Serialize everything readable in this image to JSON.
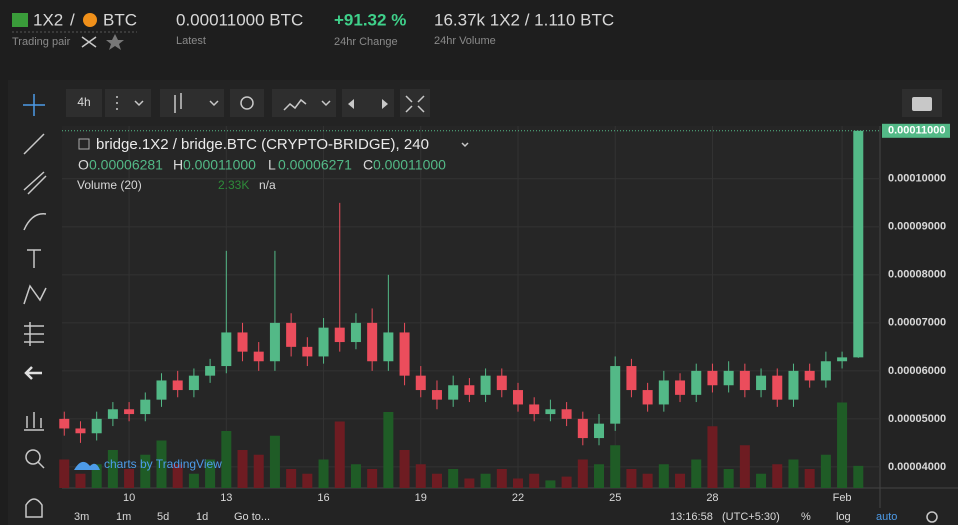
{
  "header": {
    "base": "1X2",
    "slash": "/",
    "quote": "BTC",
    "pair_caption": "Trading pair",
    "latest": "0.00011000 BTC",
    "latest_caption": "Latest",
    "change": "+91.32 %",
    "change_caption": "24hr Change",
    "volume": "16.37k 1X2 / 1.110 BTC",
    "volume_caption": "24hr Volume"
  },
  "toolbar": {
    "interval": "4h"
  },
  "chart_data": {
    "type": "candlestick",
    "title": "bridge.1X2 / bridge.BTC (CRYPTO-BRIDGE), 240",
    "legend": {
      "o_label": "O",
      "o": "0.00006281",
      "h_label": "H",
      "h": "0.00011000",
      "l_label": "L",
      "l": "0.00006271",
      "c_label": "C",
      "c": "0.00011000",
      "volume_title": "Volume (20)",
      "volume_value": "2.33K",
      "volume_ma": "n/a"
    },
    "up_color": "#53b987",
    "down_color": "#eb4d5c",
    "volume_up_color": "#1f5c26",
    "volume_down_color": "#6e1c22",
    "grid": true,
    "last_price": {
      "value": 0.00011,
      "label": "0.00011000"
    },
    "watermark": "charts by TradingView",
    "xlim": [
      7.93,
      33.17
    ],
    "xticks": [
      10,
      13,
      16,
      19,
      22,
      25,
      28,
      {
        "value": 32,
        "label": "Feb"
      }
    ],
    "ylim": [
      3.56e-05,
      0.000111
    ],
    "yticks": [
      {
        "value": 4e-05,
        "label": "0.00004000"
      },
      {
        "value": 5e-05,
        "label": "0.00005000"
      },
      {
        "value": 6e-05,
        "label": "0.00006000"
      },
      {
        "value": 7e-05,
        "label": "0.00007000"
      },
      {
        "value": 8e-05,
        "label": "0.00008000"
      },
      {
        "value": 9e-05,
        "label": "0.00009000"
      },
      {
        "value": 0.0001,
        "label": "0.00010000"
      }
    ],
    "volume_lim": [
      0,
      10000
    ],
    "x": [
      8,
      8.5,
      9,
      9.5,
      10,
      10.5,
      11,
      11.5,
      12,
      12.5,
      13,
      13.5,
      14,
      14.5,
      15,
      15.5,
      16,
      16.5,
      17,
      17.5,
      18,
      18.5,
      19,
      19.5,
      20,
      20.5,
      21,
      21.5,
      22,
      22.5,
      23,
      23.5,
      24,
      24.5,
      25,
      25.5,
      26,
      26.5,
      27,
      27.5,
      28,
      28.5,
      29,
      29.5,
      30,
      30.5,
      31,
      31.5,
      32,
      32.5
    ],
    "open": [
      5e-05,
      4.8e-05,
      4.7e-05,
      5e-05,
      5.2e-05,
      5.1e-05,
      5.4e-05,
      5.8e-05,
      5.6e-05,
      5.9e-05,
      6.1e-05,
      6.8e-05,
      6.4e-05,
      6.2e-05,
      7e-05,
      6.5e-05,
      6.3e-05,
      6.9e-05,
      6.6e-05,
      7e-05,
      6.2e-05,
      6.8e-05,
      5.9e-05,
      5.6e-05,
      5.4e-05,
      5.7e-05,
      5.5e-05,
      5.9e-05,
      5.6e-05,
      5.3e-05,
      5.1e-05,
      5.2e-05,
      5e-05,
      4.6e-05,
      4.9e-05,
      6.1e-05,
      5.6e-05,
      5.3e-05,
      5.8e-05,
      5.5e-05,
      6e-05,
      5.7e-05,
      6e-05,
      5.6e-05,
      5.9e-05,
      5.4e-05,
      6e-05,
      5.8e-05,
      6.2e-05,
      6.281e-05
    ],
    "high": [
      5.15e-05,
      4.95e-05,
      5.15e-05,
      5.35e-05,
      5.35e-05,
      5.55e-05,
      5.95e-05,
      6e-05,
      6.05e-05,
      6.25e-05,
      8.5e-05,
      7e-05,
      6.6e-05,
      8.5e-05,
      7.2e-05,
      6.7e-05,
      7.1e-05,
      9.5e-05,
      7.2e-05,
      7.3e-05,
      8e-05,
      7e-05,
      6.1e-05,
      5.8e-05,
      5.9e-05,
      5.85e-05,
      6.05e-05,
      6.05e-05,
      5.75e-05,
      5.45e-05,
      5.4e-05,
      5.35e-05,
      5.15e-05,
      5.1e-05,
      6.3e-05,
      6.25e-05,
      5.75e-05,
      6e-05,
      5.95e-05,
      6.15e-05,
      6.15e-05,
      6.2e-05,
      6.15e-05,
      6.05e-05,
      6.05e-05,
      6.15e-05,
      6.15e-05,
      6.4e-05,
      6.4e-05,
      0.00011
    ],
    "low": [
      4.65e-05,
      4.5e-05,
      4.55e-05,
      4.85e-05,
      4.95e-05,
      4.95e-05,
      5.25e-05,
      5.45e-05,
      5.45e-05,
      5.75e-05,
      5.95e-05,
      6.2e-05,
      6e-05,
      6e-05,
      6.3e-05,
      6.1e-05,
      6.15e-05,
      6.4e-05,
      6.45e-05,
      6e-05,
      6e-05,
      5.7e-05,
      5.45e-05,
      5.2e-05,
      5.25e-05,
      5.35e-05,
      5.35e-05,
      5.45e-05,
      5.15e-05,
      4.95e-05,
      4.95e-05,
      4.85e-05,
      4.45e-05,
      4.45e-05,
      4.75e-05,
      5.45e-05,
      5.15e-05,
      5.15e-05,
      5.35e-05,
      5.35e-05,
      5.55e-05,
      5.55e-05,
      5.45e-05,
      5.45e-05,
      5.25e-05,
      5.25e-05,
      5.65e-05,
      5.65e-05,
      6.05e-05,
      6.271e-05
    ],
    "close": [
      4.8e-05,
      4.7e-05,
      5e-05,
      5.2e-05,
      5.1e-05,
      5.4e-05,
      5.8e-05,
      5.6e-05,
      5.9e-05,
      6.1e-05,
      6.8e-05,
      6.4e-05,
      6.2e-05,
      7e-05,
      6.5e-05,
      6.3e-05,
      6.9e-05,
      6.6e-05,
      7e-05,
      6.2e-05,
      6.8e-05,
      5.9e-05,
      5.6e-05,
      5.4e-05,
      5.7e-05,
      5.5e-05,
      5.9e-05,
      5.6e-05,
      5.3e-05,
      5.1e-05,
      5.2e-05,
      5e-05,
      4.6e-05,
      4.9e-05,
      6.1e-05,
      5.6e-05,
      5.3e-05,
      5.8e-05,
      5.5e-05,
      6e-05,
      5.7e-05,
      6e-05,
      5.6e-05,
      5.9e-05,
      5.4e-05,
      6e-05,
      5.8e-05,
      6.2e-05,
      6.281e-05,
      0.00011
    ],
    "volume": [
      3000,
      1500,
      2500,
      4000,
      2000,
      3500,
      5000,
      2500,
      1500,
      3000,
      6000,
      4000,
      3500,
      5500,
      2000,
      1500,
      3000,
      7000,
      2500,
      2000,
      8000,
      4000,
      2500,
      1500,
      2000,
      1000,
      1500,
      2000,
      1000,
      1500,
      800,
      1200,
      3000,
      2500,
      4500,
      2000,
      1500,
      2500,
      1500,
      3000,
      6500,
      2000,
      4500,
      1500,
      2500,
      3000,
      2000,
      3500,
      9000,
      2330
    ]
  },
  "bottom_bar": {
    "ranges": [
      "3m",
      "1m",
      "5d",
      "1d"
    ],
    "goto": "Go to...",
    "time": "13:16:58",
    "timezone": "(UTC+5:30)",
    "percent": "%",
    "log": "log",
    "auto": "auto"
  }
}
